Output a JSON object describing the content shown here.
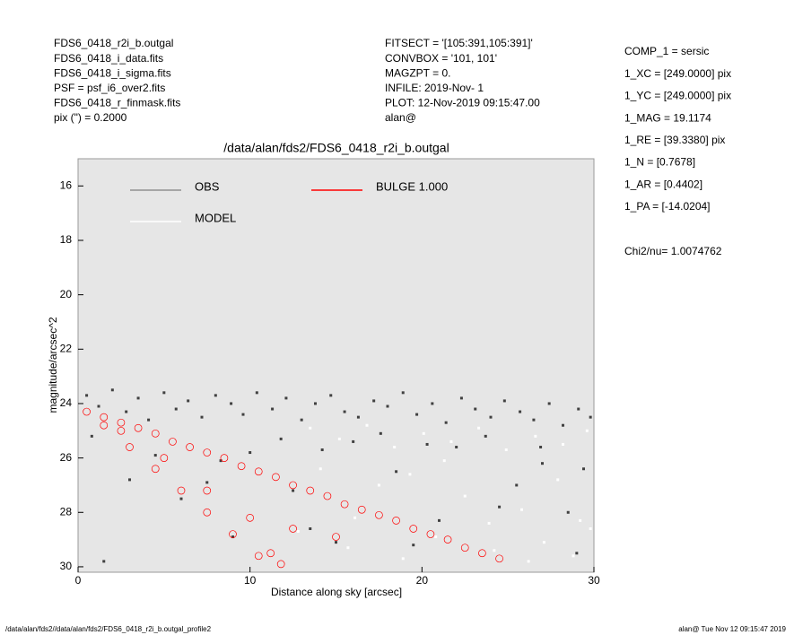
{
  "header": {
    "left": [
      "FDS6_0418_r2i_b.outgal",
      "FDS6_0418_i_data.fits",
      "FDS6_0418_i_sigma.fits",
      "PSF     = psf_i6_over2.fits",
      "FDS6_0418_r_finmask.fits",
      "pix (\") =  0.2000"
    ],
    "middle": [
      "FITSECT = '[105:391,105:391]'",
      "CONVBOX = '101, 101'",
      "MAGZPT  =              0.",
      "INFILE: 2019-Nov- 1",
      "PLOT: 12-Nov-2019 09:15:47.00",
      "alan@"
    ],
    "right": [
      "COMP_1  = sersic",
      "1_XC    = [249.0000] pix",
      "1_YC    = [249.0000] pix",
      "1_MAG   = 19.1174",
      "1_RE    = [39.3380] pix",
      "1_N     = [0.7678]",
      "1_AR    = [0.4402]",
      "1_PA    = [-14.0204]"
    ],
    "chi": "Chi2/nu=       1.0074762"
  },
  "footer": {
    "left": "/data/alan/fds2//data/alan/fds2/FDS6_0418_r2i_b.outgal_profile2",
    "right": "alan@  Tue Nov 12 09:15:47 2019"
  },
  "chart_data": {
    "type": "scatter",
    "title": "/data/alan/fds2/FDS6_0418_r2i_b.outgal",
    "xlabel": "Distance along sky [arcsec]",
    "ylabel": "magnitude/arcsec^2",
    "xlim": [
      0,
      30
    ],
    "ylim": [
      15,
      30.2
    ],
    "xticks": [
      0,
      10,
      20,
      30
    ],
    "yticks": [
      16,
      18,
      20,
      22,
      24,
      26,
      28,
      30
    ],
    "y_inverted": true,
    "series": [
      {
        "name": "OBS",
        "color": "#404040",
        "legend_color": "#909090",
        "x": [
          0.5,
          1.2,
          2.0,
          2.8,
          3.5,
          4.1,
          5.0,
          5.7,
          6.4,
          7.2,
          8.0,
          8.9,
          9.6,
          10.4,
          11.3,
          12.1,
          13.0,
          13.8,
          14.7,
          15.5,
          16.3,
          17.2,
          18.0,
          18.9,
          19.7,
          20.6,
          21.4,
          22.3,
          23.1,
          24.0,
          24.8,
          25.7,
          26.5,
          27.4,
          28.2,
          29.1,
          29.8,
          3.0,
          6.0,
          9.0,
          12.5,
          15.0,
          18.5,
          21.0,
          24.5,
          27.0,
          29.0,
          1.5,
          7.5,
          13.5,
          19.5,
          25.5,
          28.5,
          10.0,
          16.0,
          22.0,
          0.8,
          4.5,
          8.3,
          11.8,
          14.2,
          17.6,
          20.3,
          23.7,
          26.9,
          29.4
        ],
        "values": [
          23.7,
          24.1,
          23.5,
          24.3,
          23.8,
          24.6,
          23.6,
          24.2,
          23.9,
          24.5,
          23.7,
          24.0,
          24.4,
          23.6,
          24.2,
          23.8,
          24.6,
          24.0,
          23.7,
          24.3,
          24.5,
          23.9,
          24.1,
          23.6,
          24.4,
          24.0,
          24.7,
          23.8,
          24.2,
          24.5,
          23.9,
          24.3,
          24.6,
          24.0,
          24.8,
          24.2,
          24.5,
          26.8,
          27.5,
          28.9,
          27.2,
          29.1,
          26.5,
          28.3,
          27.8,
          26.2,
          29.5,
          29.8,
          26.9,
          28.6,
          29.2,
          27.0,
          28.0,
          25.8,
          25.4,
          25.6,
          25.2,
          25.9,
          26.1,
          25.3,
          25.7,
          25.1,
          25.5,
          25.2,
          25.6,
          26.4
        ]
      },
      {
        "name": "MODEL",
        "color": "#ffffff",
        "legend_color": "#ffffff",
        "x": [
          13.5,
          15.2,
          16.8,
          18.4,
          20.1,
          21.7,
          23.3,
          24.9,
          26.6,
          28.2,
          29.6,
          14.1,
          17.5,
          19.3,
          22.5,
          25.8,
          27.9,
          29.2,
          12.8,
          16.1,
          20.8,
          24.2,
          27.1,
          29.8,
          18.9,
          23.9,
          26.2,
          28.8,
          21.3,
          15.7
        ],
        "values": [
          24.9,
          25.3,
          24.8,
          25.6,
          25.1,
          25.4,
          24.9,
          25.7,
          25.2,
          25.5,
          25.0,
          26.4,
          27.0,
          26.6,
          27.4,
          27.9,
          26.8,
          28.3,
          28.7,
          28.2,
          28.9,
          29.4,
          29.1,
          28.6,
          29.7,
          28.4,
          29.8,
          29.6,
          26.1,
          29.3
        ]
      },
      {
        "name": "BULGE  1.000",
        "color": "#ff0000",
        "legend_color": "#ff0000",
        "x": [
          0.5,
          1.5,
          2.5,
          3.5,
          4.5,
          5.5,
          6.5,
          7.5,
          8.5,
          9.5,
          10.5,
          11.5,
          12.5,
          13.5,
          14.5,
          15.5,
          16.5,
          17.5,
          18.5,
          19.5,
          20.5,
          21.5,
          22.5,
          23.5,
          24.5,
          1.5,
          3.0,
          4.5,
          6.0,
          7.5,
          9.0,
          10.5,
          2.5,
          5.0,
          7.5,
          10.0,
          12.5,
          15.0,
          11.2,
          11.8
        ],
        "values": [
          24.3,
          24.5,
          24.7,
          24.9,
          25.1,
          25.4,
          25.6,
          25.8,
          26.0,
          26.3,
          26.5,
          26.7,
          27.0,
          27.2,
          27.4,
          27.7,
          27.9,
          28.1,
          28.3,
          28.6,
          28.8,
          29.0,
          29.3,
          29.5,
          29.7,
          24.8,
          25.6,
          26.4,
          27.2,
          28.0,
          28.8,
          29.6,
          25.0,
          26.0,
          27.2,
          28.2,
          28.6,
          28.9,
          29.5,
          29.9
        ]
      }
    ]
  }
}
